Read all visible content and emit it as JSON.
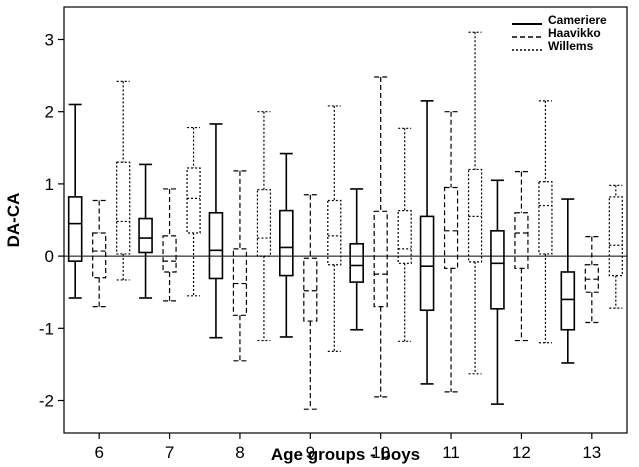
{
  "chart_data": {
    "type": "boxplot",
    "xlabel": "Age groups - boys",
    "ylabel": "DA-CA",
    "ylim": [
      -2.45,
      3.45
    ],
    "yticks": [
      -2,
      -1,
      0,
      1,
      2,
      3
    ],
    "categories": [
      "6",
      "7",
      "8",
      "9",
      "10",
      "11",
      "12",
      "13"
    ],
    "reference_line_y": 0,
    "grid": false,
    "legend_position": "top-right",
    "series": [
      {
        "name": "Cameriere",
        "line_style": "solid",
        "boxes": [
          {
            "min": -0.58,
            "q1": -0.07,
            "median": 0.45,
            "q3": 0.82,
            "max": 2.1
          },
          {
            "min": -0.58,
            "q1": 0.05,
            "median": 0.25,
            "q3": 0.52,
            "max": 1.27
          },
          {
            "min": -1.13,
            "q1": -0.31,
            "median": 0.08,
            "q3": 0.6,
            "max": 1.83
          },
          {
            "min": -1.12,
            "q1": -0.27,
            "median": 0.12,
            "q3": 0.63,
            "max": 1.42
          },
          {
            "min": -1.02,
            "q1": -0.36,
            "median": -0.13,
            "q3": 0.17,
            "max": 0.93
          },
          {
            "min": -1.77,
            "q1": -0.75,
            "median": -0.14,
            "q3": 0.55,
            "max": 2.15
          },
          {
            "min": -2.05,
            "q1": -0.73,
            "median": -0.1,
            "q3": 0.35,
            "max": 1.05
          },
          {
            "min": -1.48,
            "q1": -1.02,
            "median": -0.6,
            "q3": -0.22,
            "max": 0.79
          }
        ]
      },
      {
        "name": "Haavikko",
        "line_style": "dashed",
        "boxes": [
          {
            "min": -0.7,
            "q1": -0.3,
            "median": 0.07,
            "q3": 0.32,
            "max": 0.77
          },
          {
            "min": -0.62,
            "q1": -0.22,
            "median": -0.07,
            "q3": 0.28,
            "max": 0.93
          },
          {
            "min": -1.45,
            "q1": -0.82,
            "median": -0.38,
            "q3": 0.1,
            "max": 1.18
          },
          {
            "min": -2.12,
            "q1": -0.9,
            "median": -0.48,
            "q3": -0.03,
            "max": 0.85
          },
          {
            "min": -1.95,
            "q1": -0.7,
            "median": -0.25,
            "q3": 0.62,
            "max": 2.48
          },
          {
            "min": -1.88,
            "q1": -0.17,
            "median": 0.35,
            "q3": 0.95,
            "max": 2.0
          },
          {
            "min": -1.17,
            "q1": -0.17,
            "median": 0.32,
            "q3": 0.6,
            "max": 1.17
          },
          {
            "min": -0.92,
            "q1": -0.5,
            "median": -0.32,
            "q3": -0.12,
            "max": 0.27
          }
        ]
      },
      {
        "name": "Willems",
        "line_style": "dotted",
        "boxes": [
          {
            "min": -0.33,
            "q1": 0.03,
            "median": 0.48,
            "q3": 1.3,
            "max": 2.42
          },
          {
            "min": -0.55,
            "q1": 0.32,
            "median": 0.8,
            "q3": 1.22,
            "max": 1.78
          },
          {
            "min": -1.17,
            "q1": 0.0,
            "median": 0.25,
            "q3": 0.92,
            "max": 2.0
          },
          {
            "min": -1.32,
            "q1": -0.12,
            "median": 0.28,
            "q3": 0.77,
            "max": 2.08
          },
          {
            "min": -1.18,
            "q1": -0.1,
            "median": 0.1,
            "q3": 0.63,
            "max": 1.77
          },
          {
            "min": -1.63,
            "q1": -0.08,
            "median": 0.55,
            "q3": 1.2,
            "max": 3.1
          },
          {
            "min": -1.2,
            "q1": 0.03,
            "median": 0.7,
            "q3": 1.03,
            "max": 2.15
          },
          {
            "min": -0.72,
            "q1": -0.27,
            "median": 0.15,
            "q3": 0.82,
            "max": 0.98
          }
        ]
      }
    ]
  }
}
